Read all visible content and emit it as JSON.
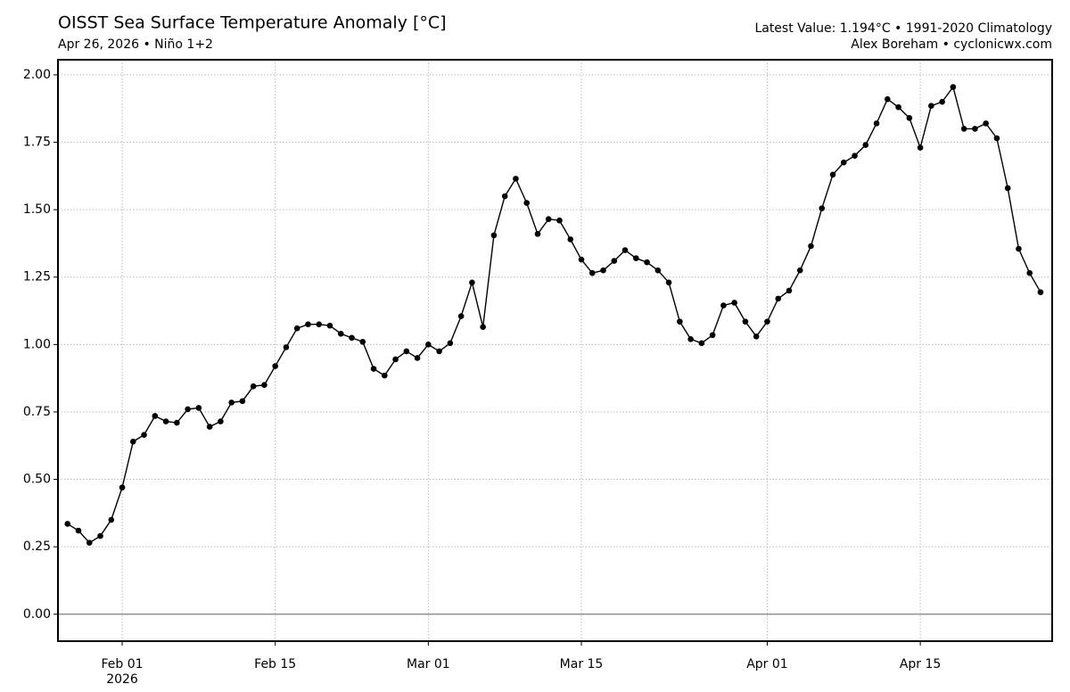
{
  "chart_data": {
    "type": "line",
    "title": "OISST Sea Surface Temperature Anomaly [°C]",
    "subtitle": "Apr 26, 2026 • Niño 1+2",
    "annotations": [
      "Latest Value: 1.194°C • 1991-2020 Climatology",
      "Alex Boreham • cyclonicwx.com"
    ],
    "x": [
      "2026-01-27",
      "2026-01-28",
      "2026-01-29",
      "2026-01-30",
      "2026-01-31",
      "2026-02-01",
      "2026-02-02",
      "2026-02-03",
      "2026-02-04",
      "2026-02-05",
      "2026-02-06",
      "2026-02-07",
      "2026-02-08",
      "2026-02-09",
      "2026-02-10",
      "2026-02-11",
      "2026-02-12",
      "2026-02-13",
      "2026-02-14",
      "2026-02-15",
      "2026-02-16",
      "2026-02-17",
      "2026-02-18",
      "2026-02-19",
      "2026-02-20",
      "2026-02-21",
      "2026-02-22",
      "2026-02-23",
      "2026-02-24",
      "2026-02-25",
      "2026-02-26",
      "2026-02-27",
      "2026-02-28",
      "2026-03-01",
      "2026-03-02",
      "2026-03-03",
      "2026-03-04",
      "2026-03-05",
      "2026-03-06",
      "2026-03-07",
      "2026-03-08",
      "2026-03-09",
      "2026-03-10",
      "2026-03-11",
      "2026-03-12",
      "2026-03-13",
      "2026-03-14",
      "2026-03-15",
      "2026-03-16",
      "2026-03-17",
      "2026-03-18",
      "2026-03-19",
      "2026-03-20",
      "2026-03-21",
      "2026-03-22",
      "2026-03-23",
      "2026-03-24",
      "2026-03-25",
      "2026-03-26",
      "2026-03-27",
      "2026-03-28",
      "2026-03-29",
      "2026-03-30",
      "2026-03-31",
      "2026-04-01",
      "2026-04-02",
      "2026-04-03",
      "2026-04-04",
      "2026-04-05",
      "2026-04-06",
      "2026-04-07",
      "2026-04-08",
      "2026-04-09",
      "2026-04-10",
      "2026-04-11",
      "2026-04-12",
      "2026-04-13",
      "2026-04-14",
      "2026-04-15",
      "2026-04-16",
      "2026-04-17",
      "2026-04-18",
      "2026-04-19",
      "2026-04-20",
      "2026-04-21",
      "2026-04-22",
      "2026-04-23",
      "2026-04-24",
      "2026-04-25",
      "2026-04-26"
    ],
    "series": [
      {
        "color": "#000000",
        "values": [
          0.335,
          0.31,
          0.265,
          0.29,
          0.35,
          0.47,
          0.64,
          0.665,
          0.735,
          0.715,
          0.71,
          0.76,
          0.765,
          0.695,
          0.715,
          0.785,
          0.79,
          0.845,
          0.85,
          0.92,
          0.99,
          1.06,
          1.075,
          1.075,
          1.07,
          1.04,
          1.025,
          1.01,
          0.91,
          0.885,
          0.945,
          0.975,
          0.95,
          1.0,
          0.975,
          1.005,
          1.105,
          1.23,
          1.065,
          1.405,
          1.55,
          1.615,
          1.525,
          1.41,
          1.465,
          1.46,
          1.39,
          1.315,
          1.265,
          1.275,
          1.31,
          1.35,
          1.32,
          1.305,
          1.275,
          1.23,
          1.085,
          1.02,
          1.005,
          1.035,
          1.145,
          1.155,
          1.085,
          1.03,
          1.085,
          1.17,
          1.2,
          1.275,
          1.365,
          1.505,
          1.63,
          1.675,
          1.7,
          1.74,
          1.82,
          1.91,
          1.88,
          1.84,
          1.73,
          1.885,
          1.9,
          1.955,
          1.8,
          1.8,
          1.82,
          1.765,
          1.58,
          1.355,
          1.265,
          1.194
        ]
      }
    ],
    "xlim": [
      "2026-01-26T03:00:00Z",
      "2026-04-27T01:30:00Z"
    ],
    "xticks": [
      {
        "value": "2026-02-01",
        "label": [
          "Feb 01",
          "2026"
        ]
      },
      {
        "value": "2026-02-15",
        "label": "Feb 15"
      },
      {
        "value": "2026-03-01",
        "label": "Mar 01"
      },
      {
        "value": "2026-03-15",
        "label": "Mar 15"
      },
      {
        "value": "2026-04-01",
        "label": "Apr 01"
      },
      {
        "value": "2026-04-15",
        "label": "Apr 15"
      }
    ],
    "ylim": [
      -0.1,
      2.056
    ],
    "yticks": [
      {
        "value": 0,
        "label": "0.00"
      },
      {
        "value": 0.25,
        "label": "0.25"
      },
      {
        "value": 0.5,
        "label": "0.50"
      },
      {
        "value": 0.75,
        "label": "0.75"
      },
      {
        "value": 1,
        "label": "1.00"
      },
      {
        "value": 1.25,
        "label": "1.25"
      },
      {
        "value": 1.5,
        "label": "1.50"
      },
      {
        "value": 1.75,
        "label": "1.75"
      },
      {
        "value": 2,
        "label": "2.00"
      }
    ],
    "grid": true,
    "zero_line": true
  }
}
